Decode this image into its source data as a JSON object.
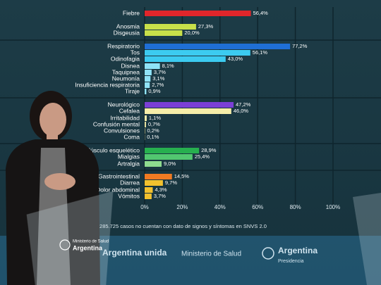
{
  "chart_data": {
    "type": "barh",
    "categories": [
      "Fiebre",
      "Anosmia",
      "Disgeusia",
      "Respiratorio",
      "Tos",
      "Odinofagia",
      "Disnea",
      "Taquipnea",
      "Neumonía",
      "Insuficiencia respiratoria",
      "Tiraje",
      "Neurológico",
      "Cefalea",
      "Irritabilidad",
      "Confusión mental",
      "Convulsiones",
      "Coma",
      "Músculo esquelético",
      "Mialgias",
      "Artralgia",
      "Gastrointestinal",
      "Diarrea",
      "Dolor abdominal",
      "Vómitos"
    ],
    "values": [
      56.4,
      27.3,
      20.0,
      77.2,
      56.1,
      43.0,
      8.1,
      3.7,
      3.1,
      2.7,
      0.9,
      47.2,
      46.0,
      1.1,
      0.7,
      0.2,
      0.1,
      28.9,
      25.4,
      9.0,
      14.5,
      9.7,
      4.3,
      3.7
    ],
    "value_labels": [
      "56,4%",
      "27,3%",
      "20,0%",
      "77,2%",
      "56,1%",
      "43,0%",
      "8,1%",
      "3,7%",
      "3,1%",
      "2,7%",
      "0,9%",
      "47,2%",
      "46,0%",
      "1,1%",
      "0,7%",
      "0,2%",
      "0,1%",
      "28,9%",
      "25,4%",
      "9,0%",
      "14,5%",
      "9,7%",
      "4,3%",
      "3,7%"
    ],
    "colors": [
      "#e0262b",
      "#c8e04a",
      "#c8e04a",
      "#1f6fd6",
      "#3ccbf0",
      "#3ccbf0",
      "#8fe3f7",
      "#8fe3f7",
      "#8fe3f7",
      "#8fe3f7",
      "#8fe3f7",
      "#7b3fd6",
      "#f5eda8",
      "#f5eda8",
      "#f5eda8",
      "#f5eda8",
      "#f5eda8",
      "#27b04f",
      "#52c770",
      "#8edb8f",
      "#f07a22",
      "#f2c12e",
      "#f2c12e",
      "#f2c12e"
    ],
    "xlim": [
      0,
      100
    ],
    "xticks": [
      {
        "value": 0,
        "label": "0%"
      },
      {
        "value": 20,
        "label": "20%"
      },
      {
        "value": 40,
        "label": "40%"
      },
      {
        "value": 60,
        "label": "60%"
      },
      {
        "value": 80,
        "label": "80%"
      },
      {
        "value": 100,
        "label": "100%"
      }
    ],
    "grid": true,
    "footnote": "*285.725 casos no cuentan con dato de signos y síntomas en SNVS 2.0"
  },
  "screen": {
    "banner_slogan": "Argentina unida",
    "banner_ministry": "Ministerio de Salud",
    "banner_country": "Argentina",
    "banner_presidency": "Presidencia",
    "podium_ministry": "Ministerio de Salud",
    "podium_country": "Argentina"
  }
}
